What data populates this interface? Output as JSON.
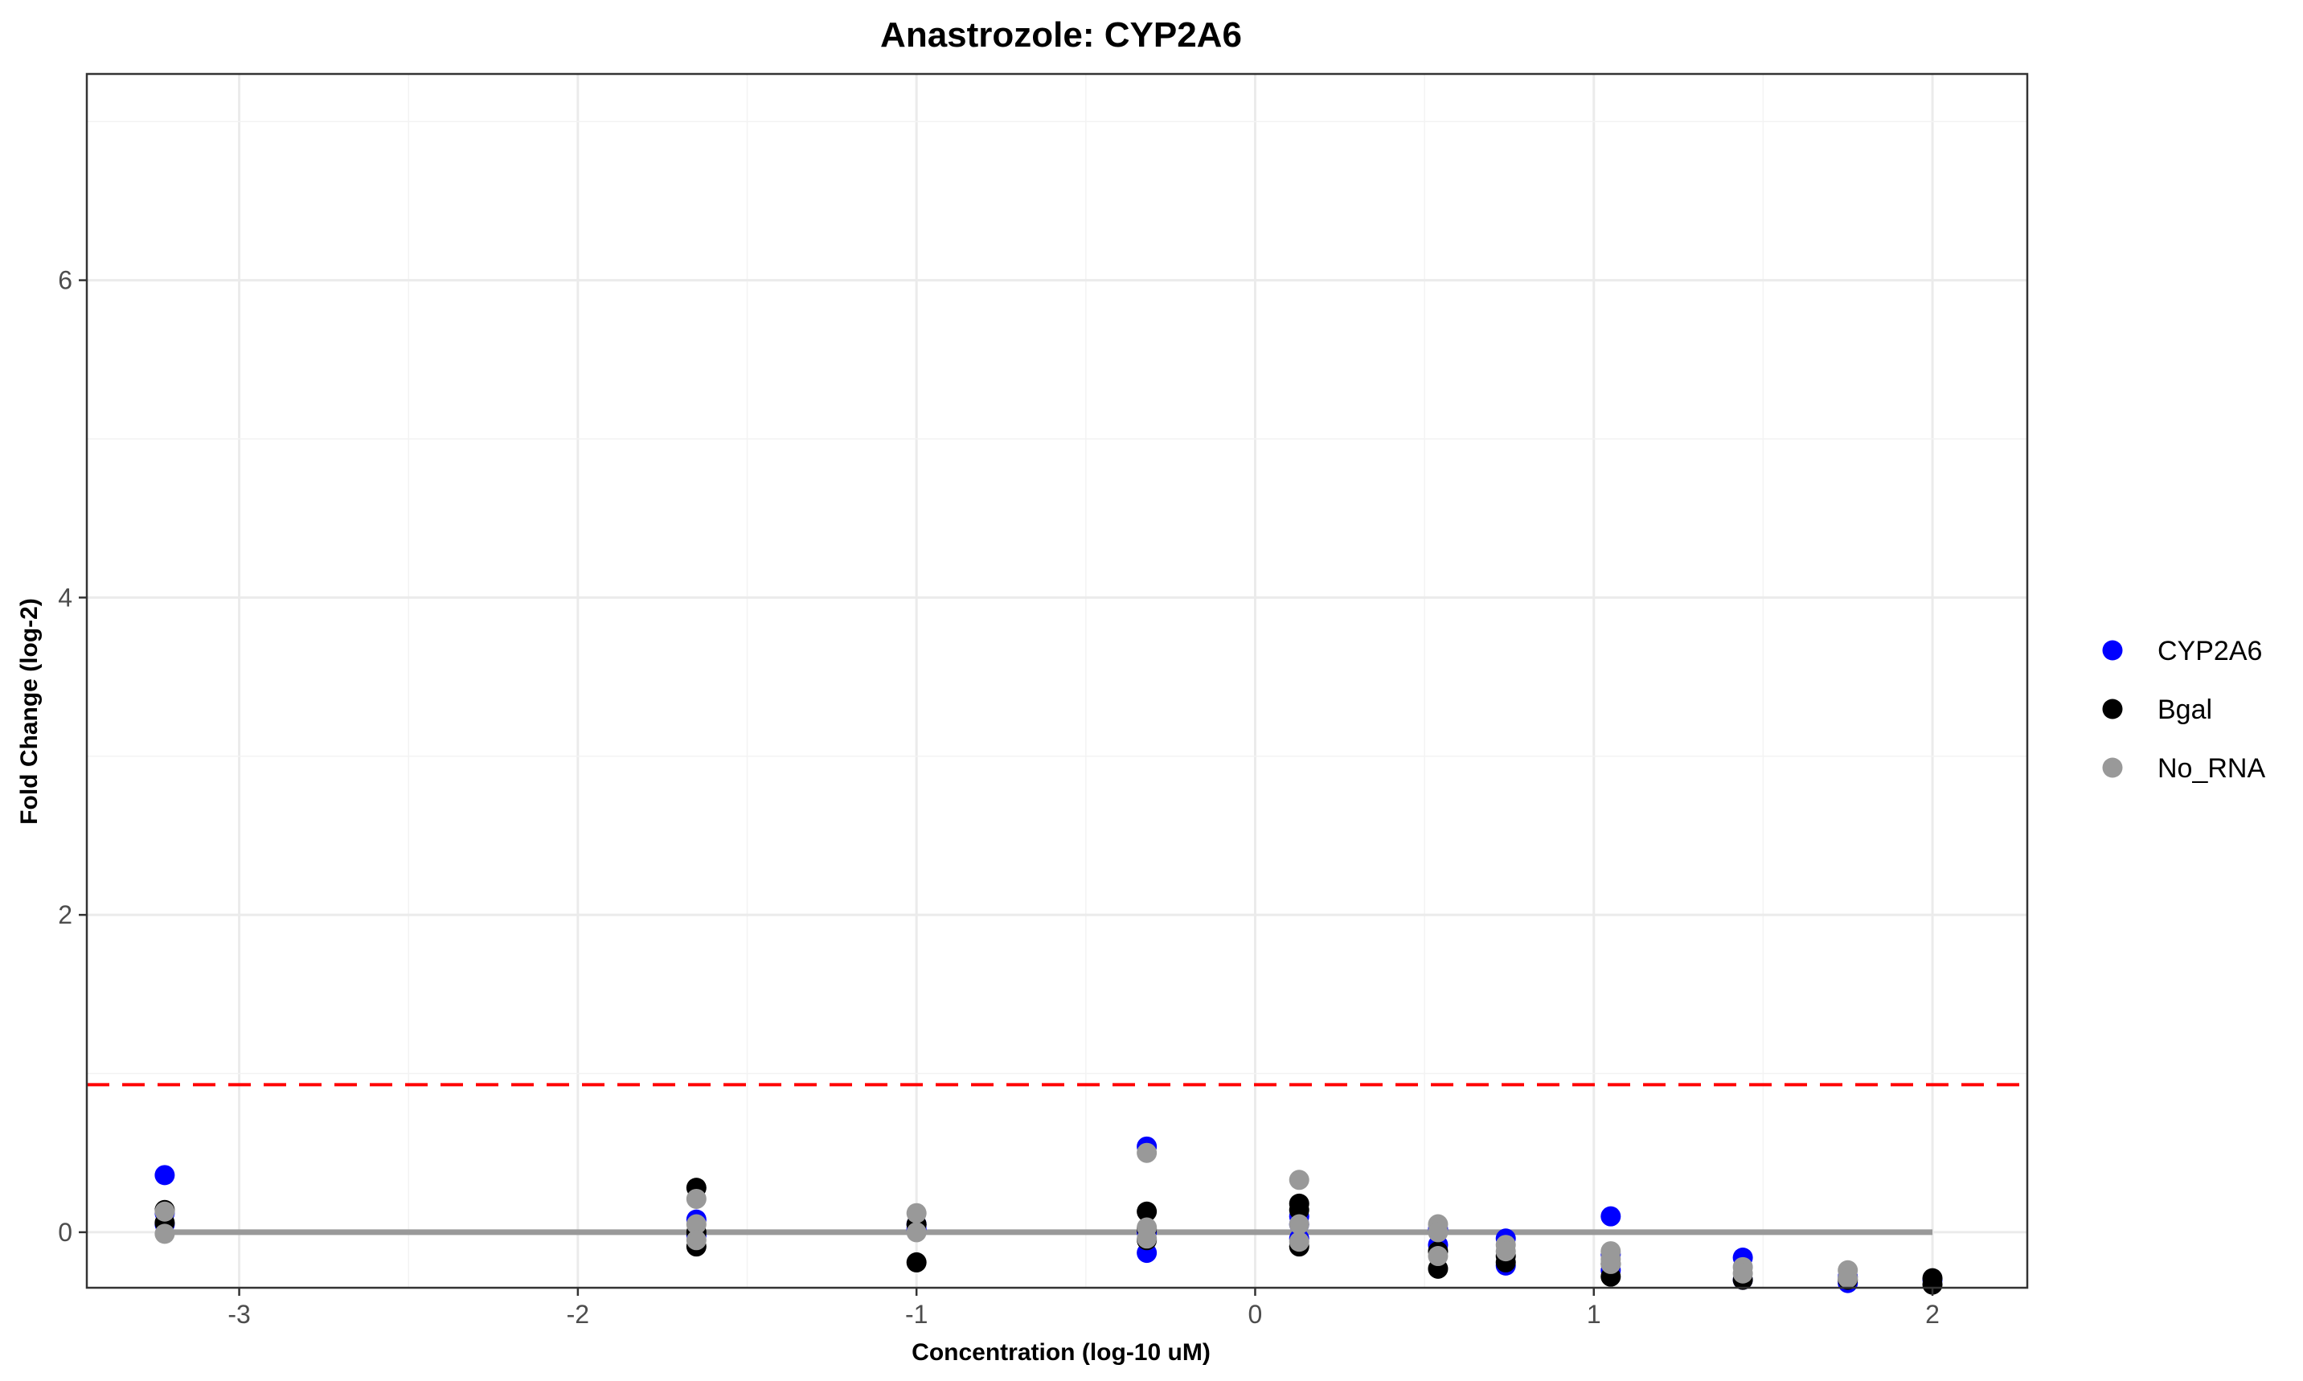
{
  "chart_data": {
    "type": "scatter",
    "title": "Anastrozole: CYP2A6",
    "xlabel": "Concentration (log-10 uM)",
    "ylabel": "Fold Change (log-2)",
    "xlim": [
      -3.45,
      2.28
    ],
    "ylim": [
      -0.35,
      7.3
    ],
    "xticks": [
      -3,
      -2,
      -1,
      0,
      1,
      2
    ],
    "yticks": [
      0,
      2,
      4,
      6
    ],
    "xtick_labels": [
      "-3",
      "-2",
      "-1",
      "0",
      "1",
      "2"
    ],
    "ytick_labels": [
      "0",
      "2",
      "4",
      "6"
    ],
    "grid": true,
    "legend_position": "right",
    "threshold_line": {
      "y": 0.93,
      "color": "#ff0000",
      "style": "dashed"
    },
    "reference_line": {
      "y": 0,
      "x_range": [
        -3.22,
        2.0
      ],
      "color": "#999999"
    },
    "series": [
      {
        "name": "CYP2A6",
        "color": "#0000ff",
        "points": [
          [
            -3.22,
            0.36
          ],
          [
            -3.22,
            0.12
          ],
          [
            -3.22,
            0.05
          ],
          [
            -1.65,
            0.08
          ],
          [
            -1.65,
            -0.02
          ],
          [
            -1.0,
            0.05
          ],
          [
            -1.0,
            0.02
          ],
          [
            -0.32,
            0.54
          ],
          [
            -0.32,
            -0.13
          ],
          [
            -0.32,
            0.0
          ],
          [
            0.13,
            0.05
          ],
          [
            0.13,
            -0.04
          ],
          [
            0.13,
            0.1
          ],
          [
            0.54,
            -0.08
          ],
          [
            0.54,
            0.02
          ],
          [
            0.74,
            -0.04
          ],
          [
            0.74,
            -0.21
          ],
          [
            1.05,
            0.1
          ],
          [
            1.05,
            -0.24
          ],
          [
            1.05,
            -0.14
          ],
          [
            1.44,
            -0.16
          ],
          [
            1.44,
            -0.3
          ],
          [
            1.75,
            -0.28
          ],
          [
            1.75,
            -0.32
          ],
          [
            2.0,
            -0.3
          ]
        ]
      },
      {
        "name": "Bgal",
        "color": "#000000",
        "points": [
          [
            -3.22,
            0.14
          ],
          [
            -3.22,
            0.06
          ],
          [
            -1.65,
            0.28
          ],
          [
            -1.65,
            -0.09
          ],
          [
            -1.65,
            0.0
          ],
          [
            -1.0,
            -0.19
          ],
          [
            -1.0,
            0.05
          ],
          [
            -0.32,
            0.13
          ],
          [
            -0.32,
            -0.05
          ],
          [
            -0.32,
            0.02
          ],
          [
            0.13,
            0.18
          ],
          [
            0.13,
            -0.09
          ],
          [
            0.13,
            0.14
          ],
          [
            0.54,
            -0.23
          ],
          [
            0.54,
            -0.12
          ],
          [
            0.74,
            -0.19
          ],
          [
            0.74,
            -0.15
          ],
          [
            1.05,
            -0.28
          ],
          [
            1.05,
            -0.2
          ],
          [
            1.44,
            -0.3
          ],
          [
            1.75,
            -0.3
          ],
          [
            2.0,
            -0.29
          ],
          [
            2.0,
            -0.33
          ]
        ]
      },
      {
        "name": "No_RNA",
        "color": "#999999",
        "points": [
          [
            -3.22,
            -0.01
          ],
          [
            -3.22,
            0.13
          ],
          [
            -1.65,
            0.21
          ],
          [
            -1.65,
            0.05
          ],
          [
            -1.65,
            -0.05
          ],
          [
            -1.0,
            0.12
          ],
          [
            -1.0,
            0.0
          ],
          [
            -0.32,
            0.5
          ],
          [
            -0.32,
            0.03
          ],
          [
            -0.32,
            -0.04
          ],
          [
            0.13,
            0.33
          ],
          [
            0.13,
            0.05
          ],
          [
            0.13,
            -0.06
          ],
          [
            0.54,
            0.05
          ],
          [
            0.54,
            0.0
          ],
          [
            0.54,
            -0.15
          ],
          [
            0.74,
            -0.08
          ],
          [
            0.74,
            -0.12
          ],
          [
            1.05,
            -0.12
          ],
          [
            1.05,
            -0.17
          ],
          [
            1.05,
            -0.2
          ],
          [
            1.44,
            -0.22
          ],
          [
            1.44,
            -0.26
          ],
          [
            1.75,
            -0.24
          ],
          [
            1.75,
            -0.29
          ]
        ]
      }
    ]
  }
}
